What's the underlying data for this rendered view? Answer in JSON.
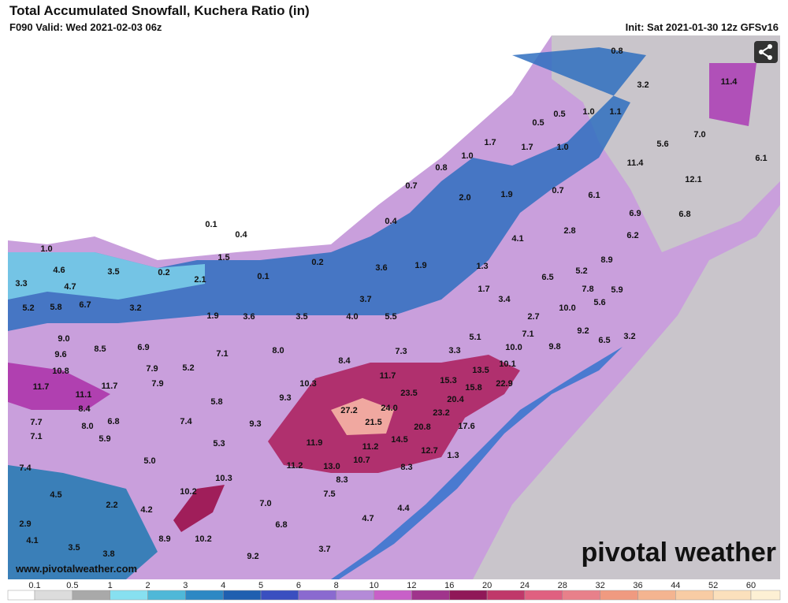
{
  "header": {
    "title": "Total Accumulated Snowfall, Kuchera Ratio (in)",
    "valid": "F090 Valid: Wed 2021-02-03 06z",
    "init": "Init: Sat 2021-01-30 12z GFSv16"
  },
  "map_labels": [
    "0.8",
    "3.2",
    "11.4",
    "1.0",
    "1.1",
    "0.5",
    "0.5",
    "7.0",
    "1.7",
    "1.7",
    "1.0",
    "5.6",
    "1.0",
    "11.4",
    "6.1",
    "0.8",
    "12.1",
    "0.7",
    "2.0",
    "1.9",
    "0.7",
    "6.1",
    "6.9",
    "6.8",
    "0.4",
    "0.1",
    "0.4",
    "4.1",
    "2.8",
    "6.2",
    "1.0",
    "1.5",
    "0.2",
    "8.9",
    "1.3",
    "3.6",
    "1.9",
    "4.6",
    "3.5",
    "0.2",
    "0.1",
    "6.5",
    "5.2",
    "3.3",
    "4.7",
    "2.1",
    "1.7",
    "7.8",
    "5.9",
    "3.7",
    "3.4",
    "10.0",
    "5.6",
    "5.2",
    "5.8",
    "6.7",
    "3.2",
    "1.9",
    "3.6",
    "3.5",
    "4.0",
    "5.5",
    "2.7",
    "9.2",
    "9.0",
    "7.1",
    "3.2",
    "6.5",
    "5.1",
    "8.5",
    "6.9",
    "7.1",
    "8.0",
    "7.3",
    "3.3",
    "10.0",
    "9.8",
    "9.6",
    "8.4",
    "10.1",
    "13.5",
    "10.8",
    "7.9",
    "5.2",
    "11.7",
    "15.3",
    "22.9",
    "11.7",
    "11.7",
    "7.9",
    "10.3",
    "11.1",
    "15.8",
    "23.5",
    "20.4",
    "9.3",
    "8.4",
    "5.8",
    "27.2",
    "24.0",
    "23.2",
    "7.7",
    "6.8",
    "7.4",
    "9.3",
    "21.5",
    "20.8",
    "17.6",
    "8.0",
    "7.1",
    "5.9",
    "5.3",
    "11.9",
    "11.2",
    "14.5",
    "12.7",
    "1.3",
    "5.0",
    "10.7",
    "11.2",
    "13.0",
    "8.3",
    "7.4",
    "8.3",
    "10.3",
    "4.5",
    "2.2",
    "10.2",
    "7.5",
    "7.0",
    "4.2",
    "4.4",
    "4.7",
    "2.9",
    "6.8",
    "4.1",
    "8.9",
    "10.2",
    "3.5",
    "3.7",
    "3.8",
    "9.2"
  ],
  "footer": {
    "url": "www.pivotalweather.com",
    "logo": "pivotal weather"
  },
  "legend": {
    "ticks": [
      "0.1",
      "0.5",
      "1",
      "2",
      "3",
      "4",
      "5",
      "6",
      "8",
      "10",
      "12",
      "16",
      "20",
      "24",
      "28",
      "32",
      "36",
      "44",
      "52",
      "60"
    ],
    "colors": [
      "#ffffff",
      "#dcdcdc",
      "#a9a9a9",
      "#87e0f0",
      "#4fb8d8",
      "#2d88c4",
      "#1f5fb0",
      "#3a4fc0",
      "#8a6ad0",
      "#b48ad8",
      "#c860c8",
      "#a0348c",
      "#901858",
      "#c0386a",
      "#e06080",
      "#e8808a",
      "#f09a80",
      "#f4b490",
      "#f8cca4",
      "#fbe0bc",
      "#fdf0d4"
    ]
  }
}
